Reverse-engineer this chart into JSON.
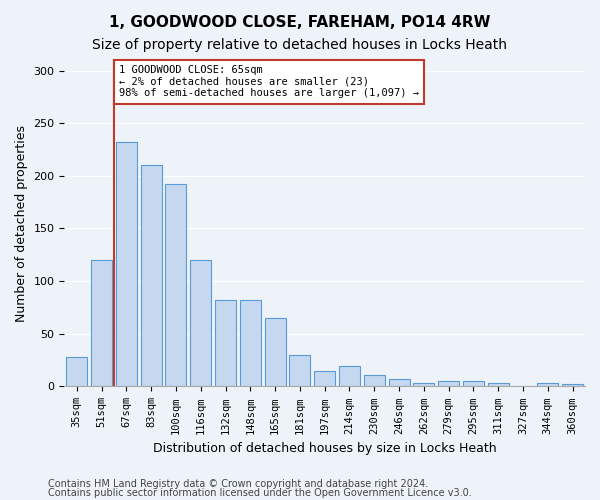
{
  "title1": "1, GOODWOOD CLOSE, FAREHAM, PO14 4RW",
  "title2": "Size of property relative to detached houses in Locks Heath",
  "xlabel": "Distribution of detached houses by size in Locks Heath",
  "ylabel": "Number of detached properties",
  "categories": [
    "35sqm",
    "51sqm",
    "67sqm",
    "83sqm",
    "100sqm",
    "116sqm",
    "132sqm",
    "148sqm",
    "165sqm",
    "181sqm",
    "197sqm",
    "214sqm",
    "230sqm",
    "246sqm",
    "262sqm",
    "279sqm",
    "295sqm",
    "311sqm",
    "327sqm",
    "344sqm",
    "360sqm"
  ],
  "values": [
    28,
    120,
    232,
    210,
    192,
    120,
    82,
    82,
    65,
    30,
    15,
    19,
    11,
    7,
    3,
    5,
    5,
    3,
    0,
    3,
    2
  ],
  "bar_color": "#c5d8f0",
  "bar_edge_color": "#5b9bd5",
  "vline_x": 1.5,
  "vline_color": "#c0392b",
  "annotation_text": "1 GOODWOOD CLOSE: 65sqm\n← 2% of detached houses are smaller (23)\n98% of semi-detached houses are larger (1,097) →",
  "annotation_box_color": "#ffffff",
  "annotation_box_edge": "#c0392b",
  "ylim": [
    0,
    310
  ],
  "footnote1": "Contains HM Land Registry data © Crown copyright and database right 2024.",
  "footnote2": "Contains public sector information licensed under the Open Government Licence v3.0.",
  "bg_color": "#eef2f9",
  "title_fontsize": 11,
  "subtitle_fontsize": 10,
  "xlabel_fontsize": 9,
  "ylabel_fontsize": 9,
  "tick_fontsize": 7.5,
  "footnote_fontsize": 7
}
